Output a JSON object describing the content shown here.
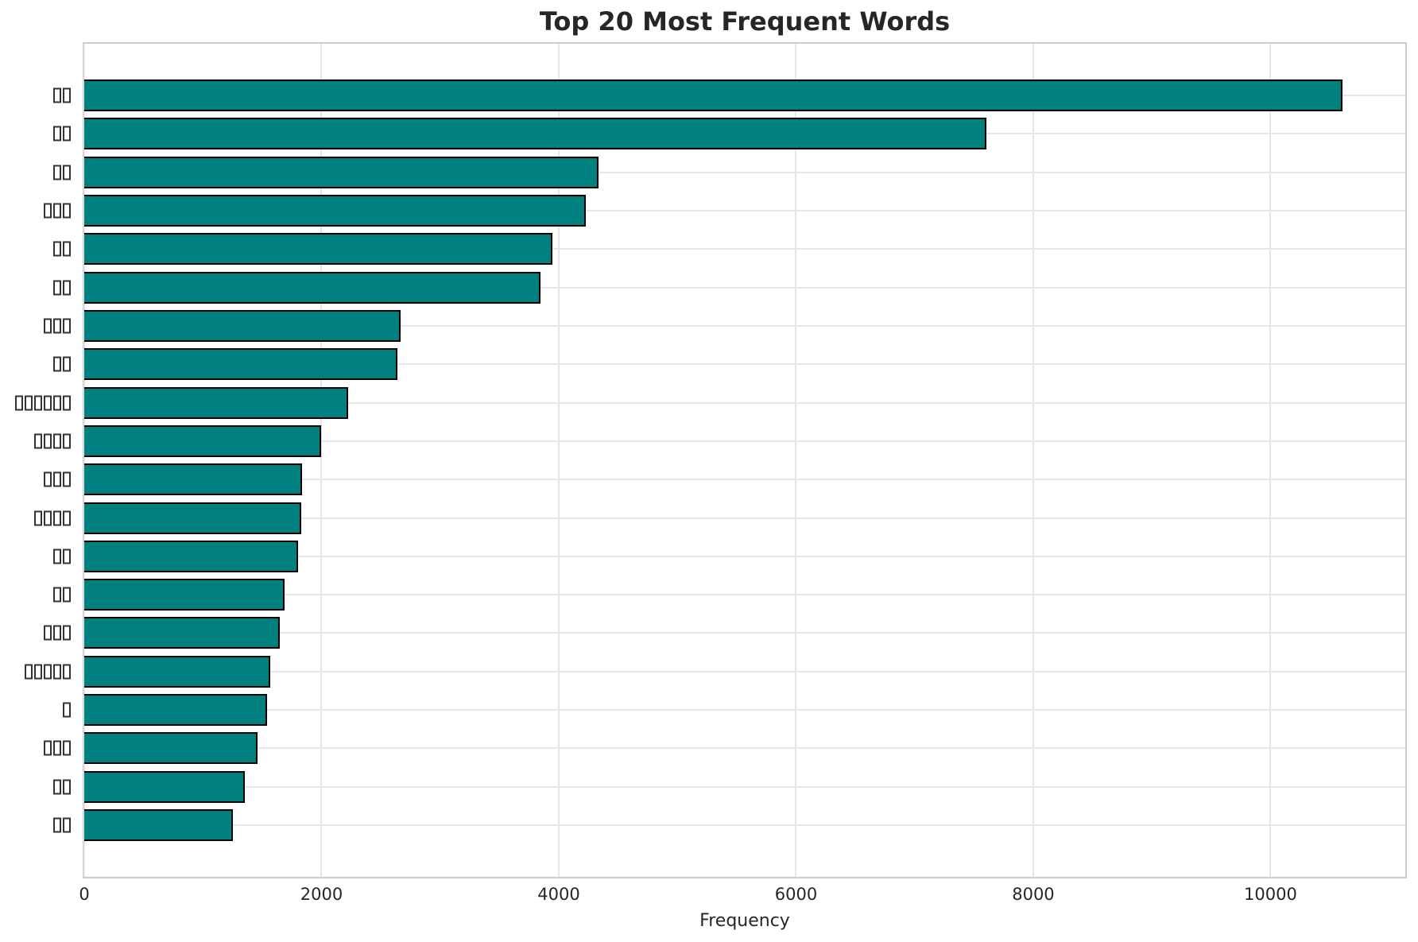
{
  "chart_data": {
    "type": "bar",
    "orientation": "horizontal",
    "title": "Top 20 Most Frequent Words",
    "xlabel": "Frequency",
    "categories": [
      "□□",
      "□□",
      "□□",
      "□□□",
      "□□",
      "□□",
      "□□□",
      "□□",
      "□□□□□□",
      "□□□□",
      "□□□",
      "□□□□",
      "□□",
      "□□",
      "□□□",
      "□□□□□",
      "□",
      "□□□",
      "□□",
      "□□"
    ],
    "values": [
      10606,
      7604,
      4335,
      4228,
      3947,
      3847,
      2664,
      2637,
      2222,
      1995,
      1835,
      1830,
      1801,
      1688,
      1645,
      1567,
      1541,
      1461,
      1354,
      1253
    ],
    "xlim": [
      0,
      11136
    ],
    "xticks": [
      0,
      2000,
      4000,
      6000,
      8000,
      10000
    ],
    "grid": true,
    "legend": null,
    "bar_color": "#008080",
    "bar_edge_color": "#000000",
    "grid_color": "#e6e6e6",
    "spine_color": "#cccccc",
    "text_color": "#262626"
  }
}
